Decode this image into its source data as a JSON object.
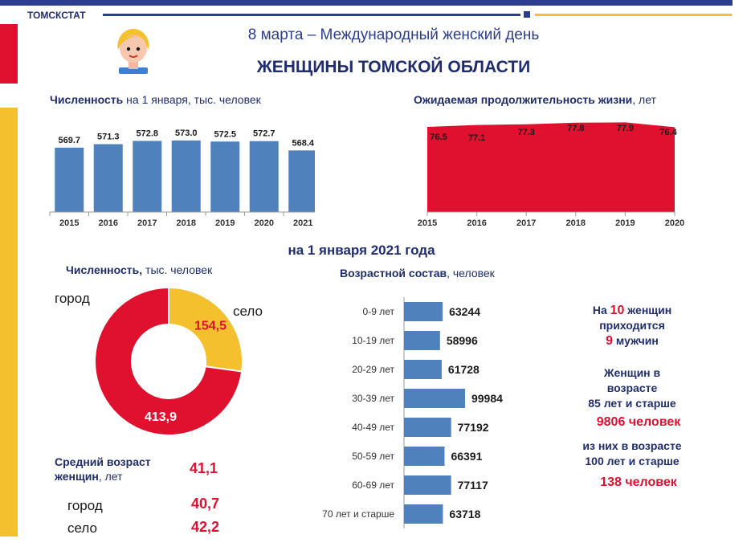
{
  "header": {
    "org": "ТОМСКСТАТ",
    "subtitle": "8 марта – Международный женский день",
    "title": "ЖЕНЩИНЫ ТОМСКОЙ ОБЛАСТИ"
  },
  "colors": {
    "navy": "#2b3d8f",
    "gold": "#f5c02d",
    "red": "#e0102f",
    "bar_blue": "#4f81bd"
  },
  "icons": {
    "avatar": "woman-avatar-icon"
  },
  "panels": {
    "population_title_bold": "Численность",
    "population_title_rest": " на 1 января, тыс. человек",
    "life_title_bold": "Ожидаемая продолжительность жизни",
    "life_title_rest": ", лет",
    "date_heading": "на 1 января  2021 года",
    "donut_title_bold": "Численность,",
    "donut_title_rest": " тыс. человек",
    "age_title_bold": "Возрастной состав",
    "age_title_rest": ", человек"
  },
  "chart_data": [
    {
      "type": "bar",
      "title": "Численность на 1 января, тыс. человек",
      "categories": [
        "2015",
        "2016",
        "2017",
        "2018",
        "2019",
        "2020",
        "2021"
      ],
      "values": [
        569.7,
        571.3,
        572.8,
        573.0,
        572.5,
        572.7,
        568.4
      ],
      "labels": [
        "569.7",
        "571.3",
        "572.8",
        "573.0",
        "572.5",
        "572.7",
        "568.4"
      ],
      "color": "#4f81bd"
    },
    {
      "type": "area",
      "title": "Ожидаемая продолжительность жизни, лет",
      "categories": [
        "2015",
        "2016",
        "2017",
        "2018",
        "2019",
        "2020"
      ],
      "values": [
        76.5,
        77.1,
        77.3,
        77.8,
        77.9,
        76.4
      ],
      "labels": [
        "76.5",
        "77.1",
        "77.3",
        "77.8",
        "77.9",
        "76.4"
      ],
      "color": "#e0102f"
    },
    {
      "type": "pie",
      "title": "Численность, тыс. человек",
      "categories": [
        "город",
        "село"
      ],
      "values": [
        413.9,
        154.5
      ],
      "labels": [
        "413,9",
        "154,5"
      ],
      "colors": [
        "#e0102f",
        "#f5c02d"
      ]
    },
    {
      "type": "bar",
      "orientation": "horizontal",
      "title": "Возрастной состав, человек",
      "categories": [
        "0-9 лет",
        "10-19 лет",
        "20-29 лет",
        "30-39 лет",
        "40-49 лет",
        "50-59 лет",
        "60-69 лет",
        "70 лет и старше"
      ],
      "values": [
        63244,
        58996,
        61728,
        99984,
        77192,
        66391,
        77117,
        63718
      ],
      "labels": [
        "63244",
        "58996",
        "61728",
        "99984",
        "77192",
        "66391",
        "77117",
        "63718"
      ],
      "color": "#4f81bd"
    }
  ],
  "avg_age": {
    "title_bold": "Средний возраст женщин",
    "title_rest": ", лет",
    "value": "41,1",
    "city_label": "город",
    "city_value": "40,7",
    "rural_label": "село",
    "rural_value": "42,2"
  },
  "facts": {
    "ratio_pre": "На ",
    "ratio_women": "10",
    "ratio_mid": " женщин",
    "ratio_line2": "приходится",
    "ratio_men": "9",
    "ratio_post": " мужчин",
    "elderly_line1": "Женщин в",
    "elderly_line2": "возрасте",
    "elderly_line3": "85 лет и старше",
    "elderly_value": "9806 человек",
    "centenarian_line1": "из них в возрасте",
    "centenarian_line2": "100 лет и старше",
    "centenarian_value": "138 человек"
  }
}
